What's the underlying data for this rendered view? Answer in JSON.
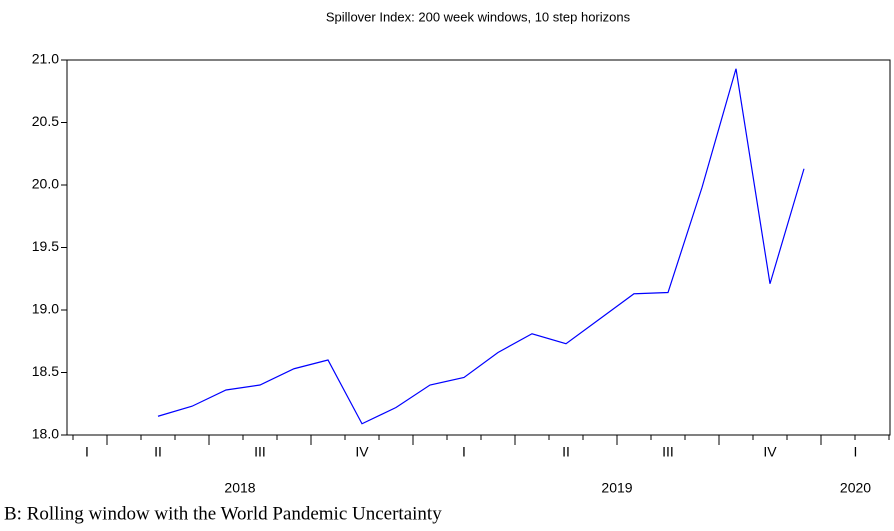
{
  "chart_data": {
    "type": "line",
    "title": "Spillover Index: 200 week windows, 10 step horizons",
    "caption": "B: Rolling window with the World Pandemic Uncertainty",
    "categories": [
      null,
      null,
      null,
      null,
      null,
      null,
      null,
      null,
      null,
      null,
      null,
      null,
      null,
      null,
      null,
      null,
      null,
      null,
      null,
      null
    ],
    "series": [
      {
        "name": "Spillover Index",
        "color": "#0000ff",
        "values": [
          18.15,
          18.23,
          18.36,
          18.4,
          18.53,
          18.6,
          18.09,
          18.22,
          18.4,
          18.46,
          18.66,
          18.81,
          18.73,
          18.93,
          19.13,
          19.14,
          19.98,
          20.93,
          19.21,
          20.13
        ]
      }
    ],
    "quarter_labels": [
      "I",
      "II",
      "III",
      "IV",
      "I",
      "II",
      "III",
      "IV",
      "I"
    ],
    "year_labels": [
      "2018",
      "2019",
      "2020"
    ],
    "ylim": [
      18,
      21
    ],
    "yticks": [
      {
        "value": 18,
        "label": "18.0"
      },
      18.5,
      {
        "value": 19,
        "label": "19.0"
      },
      19.5,
      {
        "value": 20,
        "label": "20.0"
      },
      20.5,
      {
        "value": 21,
        "label": "21.0"
      }
    ],
    "grid": false
  }
}
